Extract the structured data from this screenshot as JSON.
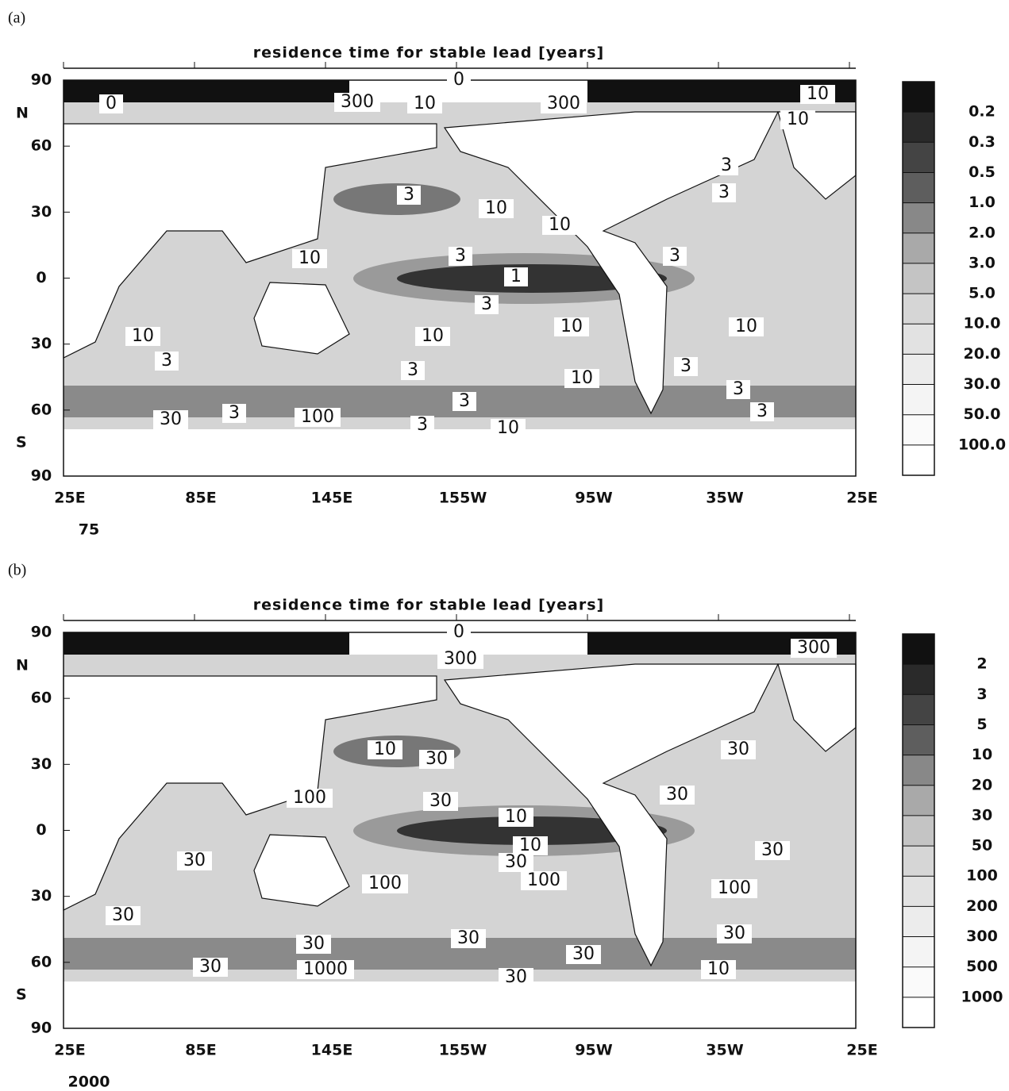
{
  "panels": [
    {
      "label": "(a)",
      "title": "residence time for stable lead [years]",
      "yticks": [
        "90",
        "60",
        "30",
        "0",
        "30",
        "60",
        "90"
      ],
      "hemispheres": [
        "N",
        "S"
      ],
      "xticks": [
        "25E",
        "85E",
        "145E",
        "155W",
        "95W",
        "35W",
        "25E"
      ],
      "colorbar": [
        "0.2",
        "0.3",
        "0.5",
        "1.0",
        "2.0",
        "3.0",
        "5.0",
        "10.0",
        "20.0",
        "30.0",
        "50.0",
        "100.0"
      ],
      "contour_labels": [
        "0",
        "0",
        "300",
        "10",
        "300",
        "10",
        "10",
        "3",
        "10",
        "10",
        "3",
        "3",
        "3",
        "10",
        "3",
        "1",
        "3",
        "10",
        "10",
        "10",
        "10",
        "3",
        "3",
        "10",
        "3",
        "3",
        "3",
        "3",
        "30",
        "3",
        "100",
        "3",
        "10"
      ],
      "note": "75"
    },
    {
      "label": "(b)",
      "title": "residence time for stable lead [years]",
      "yticks": [
        "90",
        "60",
        "30",
        "0",
        "30",
        "60",
        "90"
      ],
      "hemispheres": [
        "N",
        "S"
      ],
      "xticks": [
        "25E",
        "85E",
        "145E",
        "155W",
        "95W",
        "35W",
        "25E"
      ],
      "colorbar": [
        "2",
        "3",
        "5",
        "10",
        "20",
        "30",
        "50",
        "100",
        "200",
        "300",
        "500",
        "1000"
      ],
      "contour_labels": [
        "0",
        "300",
        "300",
        "10",
        "30",
        "30",
        "30",
        "100",
        "30",
        "10",
        "10",
        "30",
        "100",
        "30",
        "100",
        "30",
        "100",
        "30",
        "30",
        "30",
        "30",
        "30",
        "30",
        "1000",
        "30",
        "10"
      ],
      "note": "2000"
    }
  ]
}
